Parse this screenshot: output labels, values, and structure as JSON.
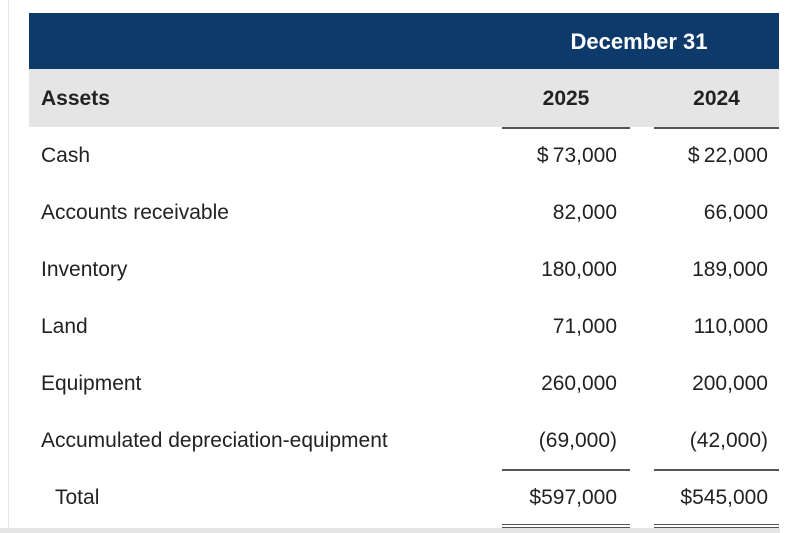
{
  "header": {
    "period_title": "December 31"
  },
  "columns": {
    "label": "Assets",
    "year_1": "2025",
    "year_2": "2024"
  },
  "rows": [
    {
      "label": "Cash",
      "v2025": "$ 73,000",
      "v2024": "$ 22,000"
    },
    {
      "label": "Accounts receivable",
      "v2025": "82,000",
      "v2024": "66,000"
    },
    {
      "label": "Inventory",
      "v2025": "180,000",
      "v2024": "189,000"
    },
    {
      "label": "Land",
      "v2025": "71,000",
      "v2024": "110,000"
    },
    {
      "label": "Equipment",
      "v2025": "260,000",
      "v2024": "200,000"
    },
    {
      "label": "Accumulated depreciation-equipment",
      "v2025": "(69,000)",
      "v2024": "(42,000)"
    }
  ],
  "total": {
    "label": "Total",
    "v2025": "$597,000",
    "v2024": "$545,000"
  },
  "colors": {
    "header_band": "#0d3a6a",
    "subheader_band": "#e5e5e5",
    "text": "#222222"
  }
}
